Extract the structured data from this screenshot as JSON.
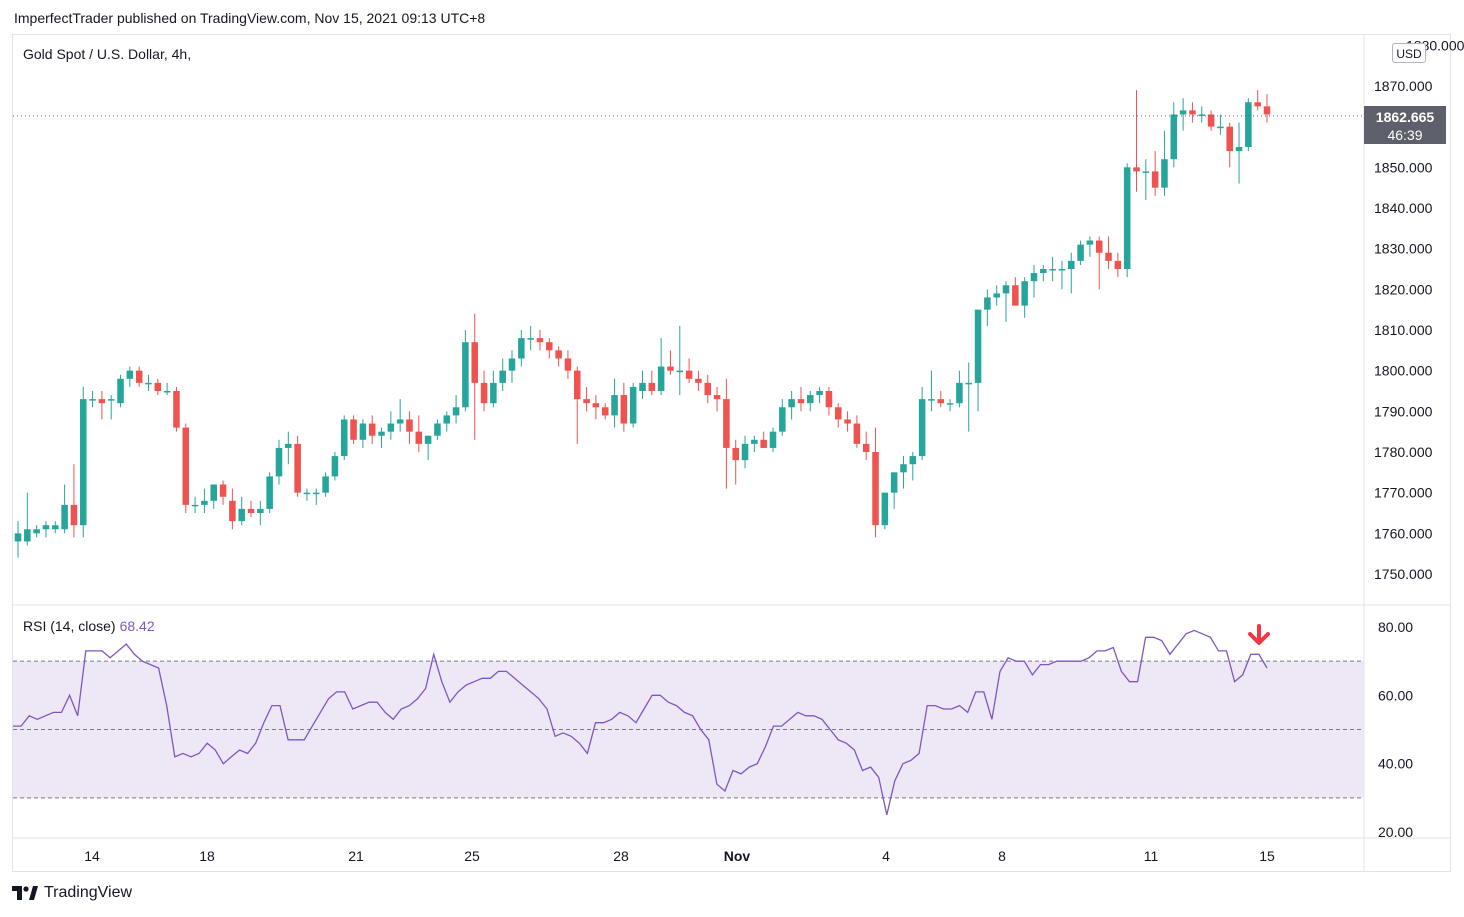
{
  "caption": "ImperfectTrader published on TradingView.com, Nov 15, 2021 09:13 UTC+8",
  "brand": "TradingView",
  "main_title": "Gold Spot / U.S. Dollar, 4h,",
  "currency": "USD",
  "last_price": "1862.665",
  "countdown": "46:39",
  "rsi_label": "RSI (14, close)",
  "rsi_value": "68.42",
  "colors": {
    "up": "#26a69a",
    "down": "#ef5350",
    "rsi_line": "#7e57c2",
    "rsi_band": "#ede7f6",
    "arrow": "#f23645"
  },
  "chart_data": [
    {
      "type": "candlestick",
      "title": "Gold Spot / U.S. Dollar, 4h,",
      "ylim": [
        1742,
        1882
      ],
      "y_ticks": [
        "1750.000",
        "1760.000",
        "1770.000",
        "1780.000",
        "1790.000",
        "1800.000",
        "1810.000",
        "1820.000",
        "1830.000",
        "1840.000",
        "1850.000",
        "1860.000",
        "1870.000"
      ],
      "x_ticks": [
        "14",
        "18",
        "21",
        "25",
        "28",
        "Nov",
        "4",
        "8",
        "11",
        "15"
      ],
      "ohlc": [
        [
          1758,
          1763,
          1754,
          1760
        ],
        [
          1758,
          1770,
          1757,
          1761
        ],
        [
          1760,
          1762,
          1759,
          1761
        ],
        [
          1761,
          1763,
          1759,
          1762
        ],
        [
          1761,
          1763,
          1760,
          1762
        ],
        [
          1761,
          1772,
          1760,
          1767
        ],
        [
          1767,
          1777,
          1759,
          1762
        ],
        [
          1762,
          1796,
          1759,
          1793
        ],
        [
          1793,
          1795,
          1791,
          1793
        ],
        [
          1793,
          1795,
          1788,
          1792
        ],
        [
          1793,
          1794,
          1788,
          1793
        ],
        [
          1792,
          1799,
          1791,
          1798
        ],
        [
          1798,
          1801,
          1796,
          1800
        ],
        [
          1800,
          1801,
          1796,
          1797
        ],
        [
          1797,
          1799,
          1795,
          1797
        ],
        [
          1797,
          1798,
          1794,
          1795
        ],
        [
          1795,
          1797,
          1794,
          1795
        ],
        [
          1795,
          1796,
          1785,
          1786
        ],
        [
          1786,
          1787,
          1765,
          1767
        ],
        [
          1767,
          1769,
          1765,
          1767
        ],
        [
          1767,
          1771,
          1765,
          1768
        ],
        [
          1768,
          1772,
          1766,
          1772
        ],
        [
          1772,
          1773,
          1767,
          1769
        ],
        [
          1768,
          1771,
          1761,
          1763
        ],
        [
          1763,
          1769,
          1762,
          1766
        ],
        [
          1766,
          1768,
          1764,
          1765
        ],
        [
          1765,
          1768,
          1762,
          1766
        ],
        [
          1766,
          1775,
          1765,
          1774
        ],
        [
          1774,
          1783,
          1772,
          1781
        ],
        [
          1781,
          1785,
          1777,
          1782
        ],
        [
          1782,
          1784,
          1769,
          1770
        ],
        [
          1770,
          1771,
          1768,
          1770
        ],
        [
          1770,
          1771,
          1767,
          1770
        ],
        [
          1770,
          1775,
          1769,
          1774
        ],
        [
          1774,
          1780,
          1773,
          1779
        ],
        [
          1779,
          1789,
          1778,
          1788
        ],
        [
          1788,
          1789,
          1782,
          1783
        ],
        [
          1783,
          1788,
          1781,
          1787
        ],
        [
          1787,
          1789,
          1782,
          1784
        ],
        [
          1784,
          1786,
          1781,
          1785
        ],
        [
          1785,
          1790,
          1783,
          1787
        ],
        [
          1787,
          1793,
          1785,
          1788
        ],
        [
          1788,
          1790,
          1782,
          1785
        ],
        [
          1785,
          1789,
          1780,
          1782
        ],
        [
          1782,
          1784,
          1778,
          1784
        ],
        [
          1784,
          1788,
          1783,
          1787
        ],
        [
          1787,
          1790,
          1785,
          1789
        ],
        [
          1789,
          1794,
          1787,
          1791
        ],
        [
          1791,
          1810,
          1790,
          1807
        ],
        [
          1807,
          1814,
          1783,
          1797
        ],
        [
          1797,
          1800,
          1790,
          1792
        ],
        [
          1792,
          1800,
          1791,
          1797
        ],
        [
          1797,
          1803,
          1795,
          1800
        ],
        [
          1800,
          1805,
          1797,
          1803
        ],
        [
          1803,
          1810,
          1801,
          1808
        ],
        [
          1808,
          1811,
          1805,
          1808
        ],
        [
          1808,
          1810,
          1805,
          1807
        ],
        [
          1807,
          1808,
          1803,
          1805
        ],
        [
          1805,
          1806,
          1801,
          1803
        ],
        [
          1803,
          1805,
          1798,
          1800
        ],
        [
          1800,
          1801,
          1782,
          1793
        ],
        [
          1793,
          1796,
          1790,
          1792
        ],
        [
          1792,
          1794,
          1788,
          1791
        ],
        [
          1791,
          1792,
          1788,
          1789
        ],
        [
          1789,
          1798,
          1786,
          1794
        ],
        [
          1794,
          1797,
          1785,
          1787
        ],
        [
          1787,
          1797,
          1786,
          1796
        ],
        [
          1795,
          1800,
          1793,
          1797
        ],
        [
          1797,
          1800,
          1794,
          1795
        ],
        [
          1795,
          1808,
          1794,
          1801
        ],
        [
          1801,
          1805,
          1799,
          1800
        ],
        [
          1800,
          1811,
          1794,
          1800
        ],
        [
          1800,
          1803,
          1797,
          1798
        ],
        [
          1798,
          1800,
          1795,
          1797
        ],
        [
          1797,
          1799,
          1792,
          1794
        ],
        [
          1794,
          1796,
          1790,
          1793
        ],
        [
          1793,
          1798,
          1771,
          1781
        ],
        [
          1781,
          1783,
          1772,
          1778
        ],
        [
          1778,
          1784,
          1776,
          1782
        ],
        [
          1782,
          1784,
          1780,
          1783
        ],
        [
          1783,
          1785,
          1781,
          1781
        ],
        [
          1781,
          1786,
          1780,
          1785
        ],
        [
          1785,
          1793,
          1784,
          1791
        ],
        [
          1791,
          1795,
          1788,
          1793
        ],
        [
          1793,
          1796,
          1790,
          1792
        ],
        [
          1792,
          1795,
          1790,
          1794
        ],
        [
          1794,
          1796,
          1792,
          1795
        ],
        [
          1795,
          1796,
          1789,
          1791
        ],
        [
          1791,
          1792,
          1786,
          1788
        ],
        [
          1788,
          1790,
          1785,
          1787
        ],
        [
          1787,
          1789,
          1781,
          1782
        ],
        [
          1782,
          1785,
          1778,
          1780
        ],
        [
          1780,
          1786,
          1759,
          1762
        ],
        [
          1762,
          1770,
          1761,
          1770
        ],
        [
          1770,
          1775,
          1766,
          1775
        ],
        [
          1775,
          1779,
          1771,
          1777
        ],
        [
          1777,
          1780,
          1773,
          1779
        ],
        [
          1779,
          1796,
          1778,
          1793
        ],
        [
          1793,
          1800,
          1790,
          1793
        ],
        [
          1793,
          1795,
          1791,
          1792
        ],
        [
          1792,
          1793,
          1790,
          1792
        ],
        [
          1792,
          1800,
          1791,
          1797
        ],
        [
          1797,
          1802,
          1785,
          1797
        ],
        [
          1797,
          1815,
          1790,
          1815
        ],
        [
          1815,
          1820,
          1811,
          1818
        ],
        [
          1818,
          1821,
          1816,
          1819
        ],
        [
          1819,
          1822,
          1812,
          1821
        ],
        [
          1821,
          1823,
          1816,
          1816
        ],
        [
          1816,
          1823,
          1813,
          1822
        ],
        [
          1822,
          1826,
          1818,
          1824
        ],
        [
          1824,
          1826,
          1822,
          1825
        ],
        [
          1825,
          1828,
          1822,
          1825
        ],
        [
          1825,
          1827,
          1820,
          1825
        ],
        [
          1825,
          1829,
          1819,
          1827
        ],
        [
          1827,
          1832,
          1826,
          1831
        ],
        [
          1831,
          1833,
          1828,
          1832
        ],
        [
          1832,
          1833,
          1820,
          1829
        ],
        [
          1829,
          1833,
          1825,
          1827
        ],
        [
          1827,
          1829,
          1823,
          1825
        ],
        [
          1825,
          1851,
          1823,
          1850
        ],
        [
          1850,
          1869,
          1844,
          1849
        ],
        [
          1849,
          1852,
          1842,
          1849
        ],
        [
          1849,
          1854,
          1843,
          1845
        ],
        [
          1845,
          1859,
          1843,
          1852
        ],
        [
          1852,
          1866,
          1850,
          1863
        ],
        [
          1863,
          1867,
          1859,
          1864
        ],
        [
          1864,
          1866,
          1861,
          1863
        ],
        [
          1863,
          1865,
          1861,
          1863
        ],
        [
          1863,
          1864,
          1859,
          1860
        ],
        [
          1860,
          1863,
          1858,
          1860
        ],
        [
          1860,
          1861,
          1850,
          1854
        ],
        [
          1854,
          1861,
          1846,
          1855
        ],
        [
          1855,
          1867,
          1854,
          1866
        ],
        [
          1866,
          1869,
          1864,
          1865
        ],
        [
          1865,
          1868,
          1861,
          1863
        ]
      ]
    },
    {
      "type": "line",
      "title": "RSI (14, close)",
      "ylim": [
        16,
        84
      ],
      "y_ticks": [
        "20.00",
        "40.00",
        "60.00",
        "80.00"
      ],
      "levels": [
        70,
        50,
        30
      ],
      "rsi": [
        51,
        51,
        54,
        53,
        54,
        55,
        55,
        60,
        54,
        73,
        73,
        73,
        71,
        73,
        75,
        72,
        70,
        69,
        68,
        57,
        42,
        43,
        42,
        43,
        46,
        44,
        40,
        42,
        44,
        43,
        46,
        52,
        57,
        57,
        47,
        47,
        47,
        51,
        55,
        59,
        61,
        61,
        56,
        57,
        58,
        58,
        55,
        53,
        56,
        57,
        59,
        62,
        72,
        64,
        58,
        61,
        63,
        64,
        65,
        65,
        67,
        67,
        65,
        63,
        61,
        59,
        56,
        48,
        49,
        48,
        46,
        43,
        52,
        52,
        53,
        55,
        54,
        52,
        56,
        60,
        60,
        58,
        57,
        55,
        54,
        50,
        47,
        34,
        32,
        38,
        37,
        39,
        40,
        45,
        51,
        51,
        53,
        55,
        54,
        54,
        53,
        50,
        47,
        46,
        44,
        38,
        39,
        36,
        25,
        35,
        40,
        41,
        43,
        57,
        57,
        56,
        56,
        57,
        55,
        61,
        61,
        53,
        67,
        71,
        70,
        70,
        66,
        69,
        69,
        70,
        70,
        70,
        70,
        71,
        73,
        73,
        74,
        67,
        64,
        64,
        77,
        77,
        76,
        72,
        75,
        78,
        79,
        78,
        77,
        73,
        73,
        64,
        66,
        72,
        72,
        68
      ]
    }
  ]
}
